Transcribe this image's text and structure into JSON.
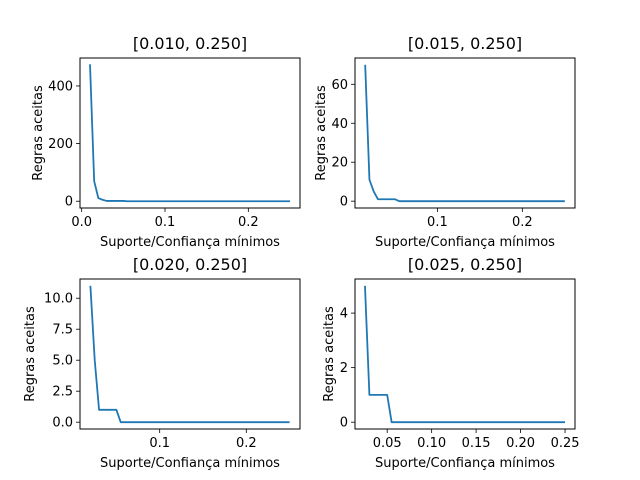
{
  "chart_data": [
    {
      "type": "line",
      "title": "[0.010, 0.250]",
      "xlabel": "Suporte/Confiança mínimos",
      "ylabel": "Regras aceitas",
      "xlim": [
        -0.002,
        0.262
      ],
      "ylim": [
        -23.5,
        497
      ],
      "xticks": [
        0.0,
        0.1,
        0.2
      ],
      "xtick_labels": [
        "0.0",
        "0.1",
        "0.2"
      ],
      "yticks": [
        0,
        200,
        400
      ],
      "ytick_labels": [
        "0",
        "200",
        "400"
      ],
      "series": [
        {
          "color": "#1f77b4",
          "x": [
            0.01,
            0.015,
            0.02,
            0.025,
            0.03,
            0.035,
            0.04,
            0.045,
            0.05,
            0.055,
            0.06,
            0.07,
            0.08,
            0.09,
            0.1,
            0.125,
            0.15,
            0.175,
            0.2,
            0.225,
            0.25
          ],
          "y": [
            475,
            70,
            11,
            5,
            1,
            1,
            1,
            1,
            1,
            0,
            0,
            0,
            0,
            0,
            0,
            0,
            0,
            0,
            0,
            0,
            0
          ]
        }
      ]
    },
    {
      "type": "line",
      "title": "[0.015, 0.250]",
      "xlabel": "Suporte/Confiança mínimos",
      "ylabel": "Regras aceitas",
      "xlim": [
        0.003,
        0.262
      ],
      "ylim": [
        -3.5,
        73.5
      ],
      "xticks": [
        0.1,
        0.2
      ],
      "xtick_labels": [
        "0.1",
        "0.2"
      ],
      "yticks": [
        0,
        20,
        40,
        60
      ],
      "ytick_labels": [
        "0",
        "20",
        "40",
        "60"
      ],
      "series": [
        {
          "color": "#1f77b4",
          "x": [
            0.015,
            0.02,
            0.025,
            0.03,
            0.035,
            0.04,
            0.045,
            0.05,
            0.055,
            0.06,
            0.07,
            0.08,
            0.09,
            0.1,
            0.125,
            0.15,
            0.175,
            0.2,
            0.225,
            0.25
          ],
          "y": [
            70,
            11,
            5,
            1,
            1,
            1,
            1,
            1,
            0,
            0,
            0,
            0,
            0,
            0,
            0,
            0,
            0,
            0,
            0,
            0
          ]
        }
      ]
    },
    {
      "type": "line",
      "title": "[0.020, 0.250]",
      "xlabel": "Suporte/Confiança mínimos",
      "ylabel": "Regras aceitas",
      "xlim": [
        0.008,
        0.262
      ],
      "ylim": [
        -0.55,
        11.55
      ],
      "xticks": [
        0.1,
        0.2
      ],
      "xtick_labels": [
        "0.1",
        "0.2"
      ],
      "yticks": [
        0,
        2.5,
        5.0,
        7.5,
        10.0
      ],
      "ytick_labels": [
        "0.0",
        "2.5",
        "5.0",
        "7.5",
        "10.0"
      ],
      "series": [
        {
          "color": "#1f77b4",
          "x": [
            0.02,
            0.025,
            0.03,
            0.035,
            0.04,
            0.045,
            0.05,
            0.055,
            0.06,
            0.07,
            0.08,
            0.09,
            0.1,
            0.125,
            0.15,
            0.175,
            0.2,
            0.225,
            0.25
          ],
          "y": [
            11,
            5,
            1,
            1,
            1,
            1,
            1,
            0,
            0,
            0,
            0,
            0,
            0,
            0,
            0,
            0,
            0,
            0,
            0
          ]
        }
      ]
    },
    {
      "type": "line",
      "title": "[0.025, 0.250]",
      "xlabel": "Suporte/Confiança mínimos",
      "ylabel": "Regras aceitas",
      "xlim": [
        0.0138,
        0.2612
      ],
      "ylim": [
        -0.25,
        5.25
      ],
      "xticks": [
        0.05,
        0.1,
        0.15,
        0.2,
        0.25
      ],
      "xtick_labels": [
        "0.05",
        "0.10",
        "0.15",
        "0.20",
        "0.25"
      ],
      "yticks": [
        0,
        2,
        4
      ],
      "ytick_labels": [
        "0",
        "2",
        "4"
      ],
      "series": [
        {
          "color": "#1f77b4",
          "x": [
            0.025,
            0.03,
            0.035,
            0.04,
            0.045,
            0.05,
            0.055,
            0.06,
            0.07,
            0.08,
            0.09,
            0.1,
            0.125,
            0.15,
            0.175,
            0.2,
            0.225,
            0.25
          ],
          "y": [
            5,
            1,
            1,
            1,
            1,
            1,
            0,
            0,
            0,
            0,
            0,
            0,
            0,
            0,
            0,
            0,
            0,
            0
          ]
        }
      ]
    }
  ]
}
